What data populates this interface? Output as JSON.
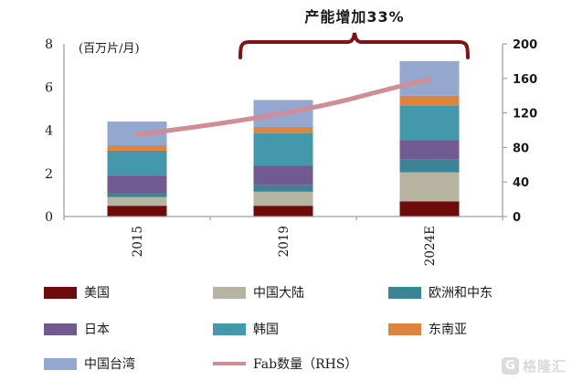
{
  "annotation": {
    "text": "产能增加33%",
    "brace_color": "#7f1416"
  },
  "watermark": {
    "icon": "G",
    "text": "格隆汇",
    "color": "#d9d9d9"
  },
  "chart_data": {
    "type": "bar",
    "subtype": "stacked-bar-with-line",
    "unit_label": "(百万片/月)",
    "categories": [
      "2015",
      "2019",
      "2024E"
    ],
    "left_axis": {
      "ticks": [
        0,
        2,
        4,
        6,
        8
      ],
      "min": 0,
      "max": 8
    },
    "right_axis": {
      "ticks": [
        0,
        40,
        80,
        120,
        160,
        200
      ],
      "min": 0,
      "max": 200
    },
    "series": [
      {
        "name": "美国",
        "color": "#6e0b0b",
        "values": [
          0.5,
          0.5,
          0.7
        ]
      },
      {
        "name": "中国大陆",
        "color": "#b7b4a2",
        "values": [
          0.4,
          0.65,
          1.35
        ]
      },
      {
        "name": "欧洲和中东",
        "color": "#3b8496",
        "values": [
          0.2,
          0.3,
          0.6
        ]
      },
      {
        "name": "日本",
        "color": "#715a92",
        "values": [
          0.8,
          0.9,
          0.9
        ]
      },
      {
        "name": "韩国",
        "color": "#4398ab",
        "values": [
          1.15,
          1.5,
          1.6
        ]
      },
      {
        "name": "东南亚",
        "color": "#dd8440",
        "values": [
          0.25,
          0.3,
          0.45
        ]
      },
      {
        "name": "中国台湾",
        "color": "#93a7cf",
        "values": [
          1.1,
          1.25,
          1.6
        ]
      }
    ],
    "bar_totals": [
      4.4,
      5.4,
      7.2
    ],
    "line_series": {
      "name": "Fab数量（RHS）",
      "color": "#cf8e96",
      "axis": "right",
      "values": [
        95,
        122,
        158
      ]
    },
    "axis_color": "#a0a0a0",
    "grid": false,
    "legend_position": "bottom"
  }
}
